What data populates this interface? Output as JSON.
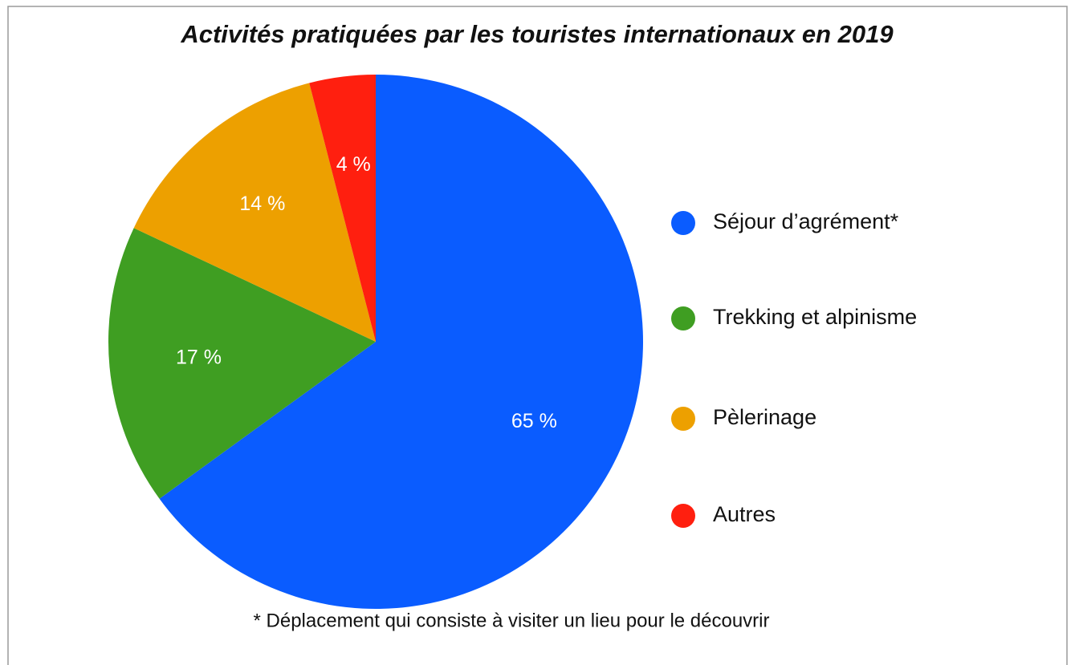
{
  "chart_data": {
    "type": "pie",
    "title": "Activités pratiquées par les touristes internationaux en 2019",
    "categories": [
      "Séjour d’agrément*",
      "Trekking et alpinisme",
      "Pèlerinage",
      "Autres"
    ],
    "values": [
      65,
      17,
      14,
      4
    ],
    "value_labels": [
      "65 %",
      "17 %",
      "14 %",
      "4 %"
    ],
    "colors": [
      "#0a5cff",
      "#3f9e22",
      "#eda000",
      "#ff1f0f"
    ],
    "footnote": "* Déplacement qui consiste à visiter un lieu pour le découvrir"
  }
}
